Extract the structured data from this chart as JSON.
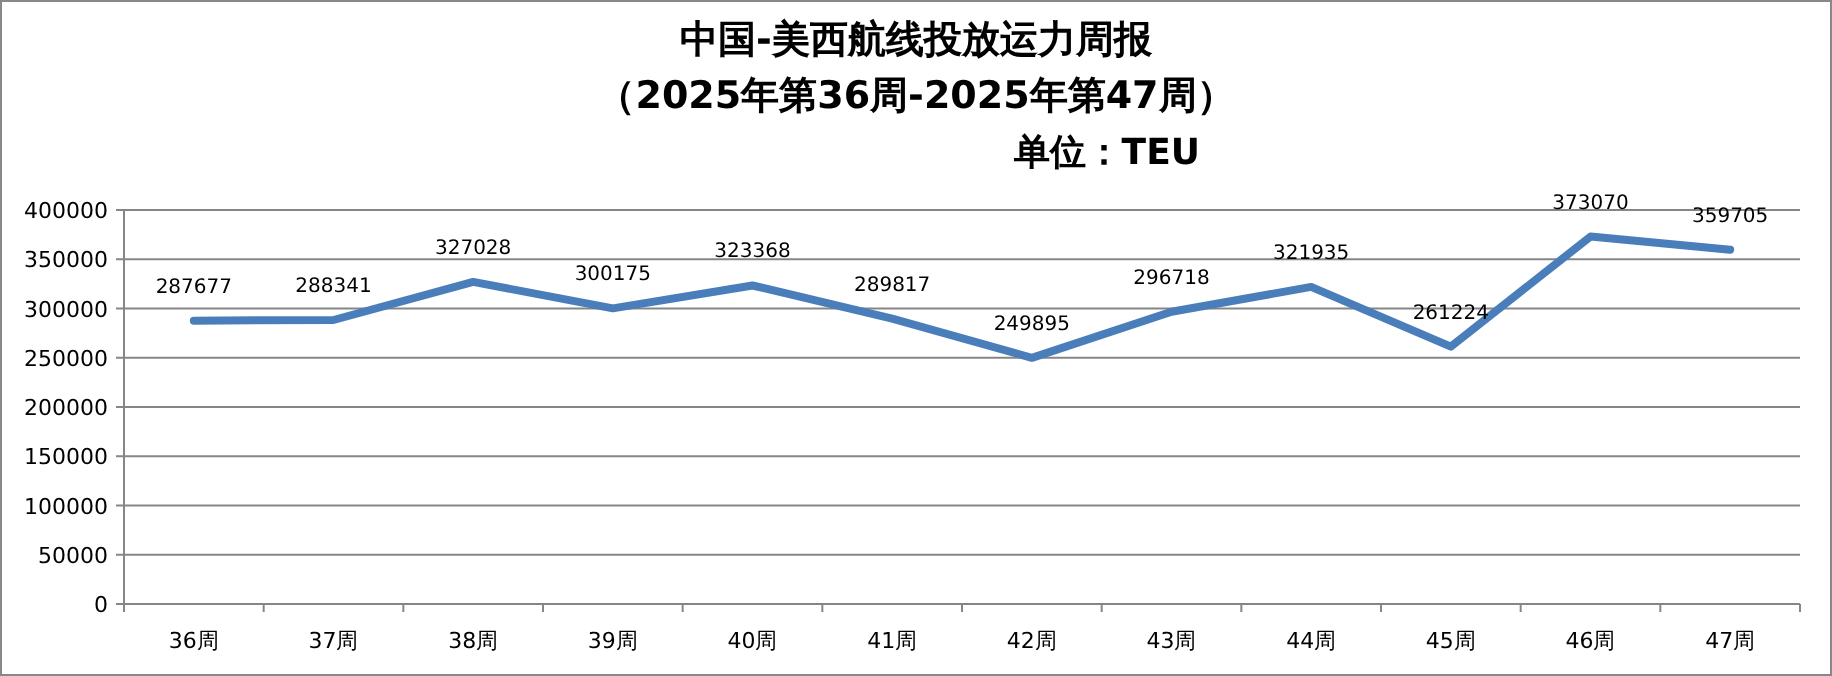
{
  "chart_data": {
    "type": "line",
    "title": "中国-美西航线投放运力周报",
    "subtitle": "（2025年第36周-2025年第47周）",
    "annotations": [
      "单位：TEU"
    ],
    "categories": [
      "36周",
      "37周",
      "38周",
      "39周",
      "40周",
      "41周",
      "42周",
      "43周",
      "44周",
      "45周",
      "46周",
      "47周"
    ],
    "series": [
      {
        "color": "#4a7ebb",
        "values": [
          287677,
          288341,
          327028,
          300175,
          323368,
          289817,
          249895,
          296718,
          321935,
          261224,
          373070,
          359705
        ]
      }
    ],
    "ylim": [
      0,
      400000
    ],
    "yticks": [
      0,
      50000,
      100000,
      150000,
      200000,
      250000,
      300000,
      350000,
      400000
    ],
    "grid": "y",
    "data_labels": true,
    "marker": "none",
    "line_style": "solid"
  }
}
